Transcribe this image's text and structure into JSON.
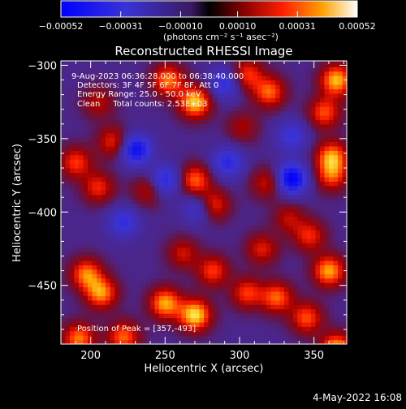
{
  "chart_data": {
    "type": "heatmap",
    "title": "Reconstructed RHESSI Image",
    "xlabel": "Heliocentric X (arcsec)",
    "ylabel": "Heliocentric Y (arcsec)",
    "xlim": [
      180,
      372
    ],
    "ylim": [
      -490,
      -297
    ],
    "x_ticks": [
      200,
      250,
      300,
      350
    ],
    "y_ticks": [
      -300,
      -350,
      -400,
      -450
    ],
    "colorbar": {
      "range": [
        -0.00052,
        0.00052
      ],
      "tick_values": [
        -0.00052,
        -0.00031,
        -0.0001,
        0.0001,
        0.00031,
        0.00052
      ],
      "tick_labels": [
        "-0.00052",
        "-0.00031",
        "-0.00010",
        "0.00010",
        "0.00031",
        "0.00052"
      ],
      "unit": "(photons cm⁻² s⁻¹ asec⁻²)"
    },
    "annotations": [
      "9-Aug-2023 06:36:28.000 to 06:38:40.000",
      "Detectors: 3F 4F 5F 6F 7F 8F, Att 0",
      "Energy Range: 25.0 - 50.0 keV",
      "Clean     Total counts: 2.53E+03"
    ],
    "peak_label": "Position of Peak = [357,-493]",
    "peak": {
      "x": 357,
      "y": -493
    },
    "hot_regions": [
      {
        "x": 192,
        "y": -486,
        "level": 0.75
      },
      {
        "x": 222,
        "y": -485,
        "level": 0.7
      },
      {
        "x": 270,
        "y": -470,
        "level": 1.0
      },
      {
        "x": 250,
        "y": -462,
        "level": 0.85
      },
      {
        "x": 207,
        "y": -455,
        "level": 0.8
      },
      {
        "x": 197,
        "y": -442,
        "level": 0.75
      },
      {
        "x": 282,
        "y": -440,
        "level": 0.6
      },
      {
        "x": 305,
        "y": -455,
        "level": 0.6
      },
      {
        "x": 325,
        "y": -458,
        "level": 0.7
      },
      {
        "x": 345,
        "y": -472,
        "level": 0.65
      },
      {
        "x": 365,
        "y": -493,
        "level": 0.9
      },
      {
        "x": 360,
        "y": -440,
        "level": 0.85
      },
      {
        "x": 315,
        "y": -425,
        "level": 0.5
      },
      {
        "x": 262,
        "y": -428,
        "level": 0.45
      },
      {
        "x": 252,
        "y": -310,
        "level": 0.75
      },
      {
        "x": 270,
        "y": -325,
        "level": 0.95
      },
      {
        "x": 305,
        "y": -306,
        "level": 0.6
      },
      {
        "x": 320,
        "y": -318,
        "level": 0.7
      },
      {
        "x": 365,
        "y": -310,
        "level": 0.9
      },
      {
        "x": 357,
        "y": -332,
        "level": 0.65
      },
      {
        "x": 362,
        "y": -362,
        "level": 0.8
      },
      {
        "x": 362,
        "y": -375,
        "level": 0.6
      },
      {
        "x": 205,
        "y": -325,
        "level": 0.4
      },
      {
        "x": 215,
        "y": -352,
        "level": 0.55
      },
      {
        "x": 190,
        "y": -366,
        "level": 0.6
      },
      {
        "x": 205,
        "y": -383,
        "level": 0.55
      },
      {
        "x": 270,
        "y": -378,
        "level": 0.7
      },
      {
        "x": 282,
        "y": -395,
        "level": 0.65
      },
      {
        "x": 238,
        "y": -385,
        "level": 0.4
      },
      {
        "x": 318,
        "y": -380,
        "level": 0.45
      },
      {
        "x": 333,
        "y": -404,
        "level": 0.4
      },
      {
        "x": 347,
        "y": -416,
        "level": 0.55
      },
      {
        "x": 302,
        "y": -342,
        "level": 0.35
      }
    ],
    "cold_regions": [
      {
        "x": 230,
        "y": -357,
        "level": -0.8
      },
      {
        "x": 335,
        "y": -377,
        "level": -0.9
      },
      {
        "x": 292,
        "y": -366,
        "level": -0.55
      },
      {
        "x": 250,
        "y": -378,
        "level": -0.6
      },
      {
        "x": 273,
        "y": -397,
        "level": -0.5
      },
      {
        "x": 290,
        "y": -312,
        "level": -0.55
      },
      {
        "x": 222,
        "y": -407,
        "level": -0.5
      },
      {
        "x": 335,
        "y": -348,
        "level": -0.45
      }
    ]
  },
  "footer": {
    "timestamp": "4-May-2022 16:08"
  }
}
